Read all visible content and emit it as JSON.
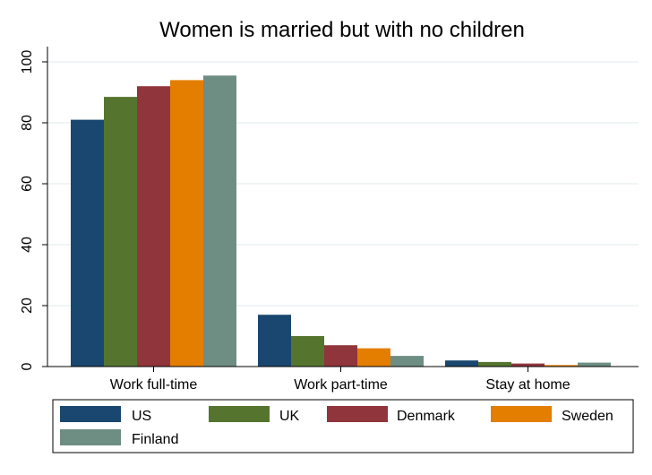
{
  "chart_data": {
    "type": "bar",
    "title": "Women is married but with no children",
    "xlabel": "",
    "ylabel": "",
    "ylim": [
      0,
      105
    ],
    "yticks": [
      0,
      20,
      40,
      60,
      80,
      100
    ],
    "grid": true,
    "legend_position": "bottom",
    "categories": [
      "Work full-time",
      "Work part-time",
      "Stay at home"
    ],
    "series": [
      {
        "name": "US",
        "color": "#1a476f",
        "values": [
          81,
          17,
          2
        ]
      },
      {
        "name": "UK",
        "color": "#55752f",
        "values": [
          88.5,
          10,
          1.5
        ]
      },
      {
        "name": "Denmark",
        "color": "#90353b",
        "values": [
          92,
          7,
          1
        ]
      },
      {
        "name": "Sweden",
        "color": "#e37e00",
        "values": [
          94,
          6,
          0.5
        ]
      },
      {
        "name": "Finland",
        "color": "#6e8e84",
        "values": [
          95.5,
          3.5,
          1.3
        ]
      }
    ]
  }
}
